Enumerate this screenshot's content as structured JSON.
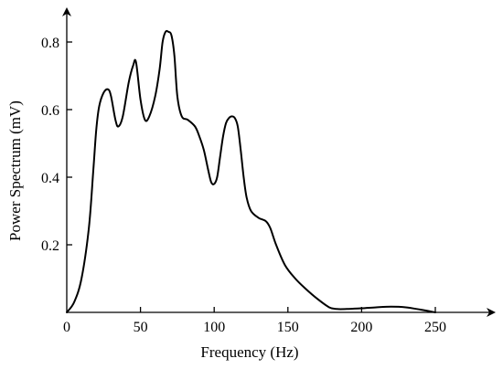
{
  "chart_data": {
    "type": "line",
    "title": "",
    "xlabel": "Frequency (Hz)",
    "ylabel": "Power Spectrum (mV)",
    "xlim": [
      0,
      290
    ],
    "ylim": [
      0,
      0.9
    ],
    "xticks": [
      0,
      50,
      100,
      150,
      200,
      250
    ],
    "yticks": [
      0.2,
      0.4,
      0.6,
      0.8
    ],
    "grid": false,
    "legend": "none",
    "series": [
      {
        "color": "#000000",
        "x": [
          0,
          5,
          10,
          15,
          18,
          20,
          22,
          25,
          28,
          30,
          33,
          35,
          38,
          42,
          45,
          47,
          50,
          53,
          56,
          60,
          63,
          65,
          67,
          69,
          71,
          73,
          75,
          78,
          82,
          87,
          90,
          93,
          96,
          98,
          100,
          102,
          104,
          106,
          108,
          110,
          112,
          114,
          116,
          118,
          120,
          122,
          125,
          130,
          135,
          138,
          142,
          148,
          155,
          162,
          170,
          178,
          183,
          190,
          200,
          210,
          220,
          230,
          240,
          250
        ],
        "y": [
          0,
          0.03,
          0.1,
          0.25,
          0.42,
          0.54,
          0.61,
          0.65,
          0.66,
          0.64,
          0.57,
          0.55,
          0.58,
          0.68,
          0.73,
          0.74,
          0.63,
          0.57,
          0.58,
          0.64,
          0.72,
          0.8,
          0.83,
          0.83,
          0.82,
          0.76,
          0.64,
          0.58,
          0.57,
          0.55,
          0.52,
          0.48,
          0.42,
          0.385,
          0.38,
          0.4,
          0.46,
          0.52,
          0.56,
          0.575,
          0.58,
          0.575,
          0.55,
          0.48,
          0.4,
          0.34,
          0.3,
          0.28,
          0.27,
          0.25,
          0.2,
          0.14,
          0.1,
          0.07,
          0.04,
          0.015,
          0.01,
          0.01,
          0.012,
          0.015,
          0.017,
          0.015,
          0.008,
          0.0
        ]
      }
    ]
  }
}
